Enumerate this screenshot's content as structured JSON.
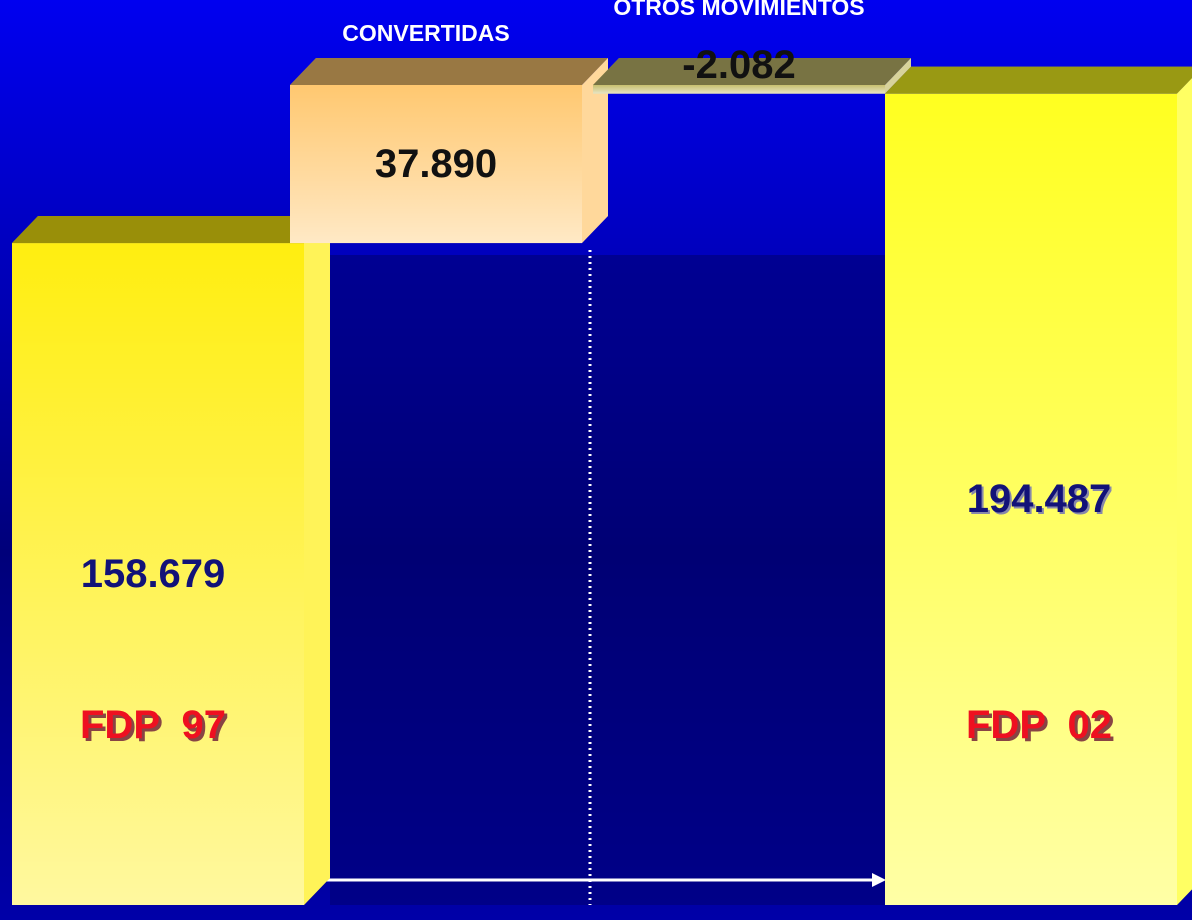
{
  "chart_data": {
    "type": "waterfall",
    "categories": [
      "FDP  97",
      "CONVERTIDAS",
      "OTROS MOVIMIENTOS",
      "FDP  02"
    ],
    "values": [
      158679,
      37890,
      -2082,
      194487
    ],
    "value_labels": [
      "158.679",
      "37.890",
      "-2.082",
      "194.487"
    ],
    "colors": [
      "#ffee10",
      "#ffc870",
      "#c8c070",
      "#ffff20"
    ]
  }
}
